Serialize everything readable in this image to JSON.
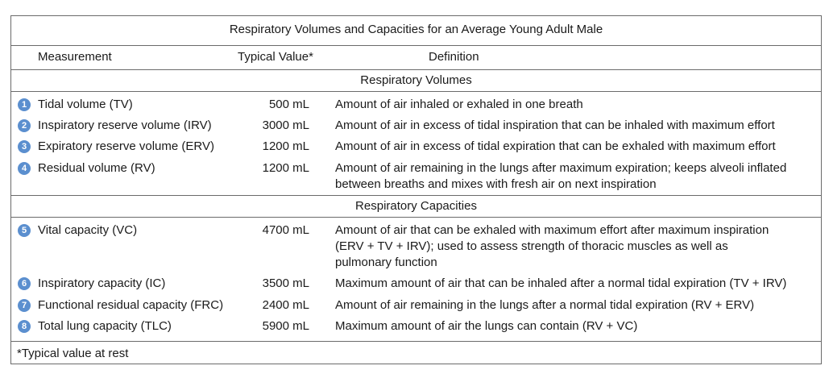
{
  "title": "Respiratory Volumes and Capacities for an Average Young Adult Male",
  "headers": {
    "measurement": "Measurement",
    "value": "Typical Value*",
    "definition": "Definition"
  },
  "sections": [
    {
      "label": "Respiratory Volumes",
      "rows": [
        {
          "num": "1",
          "measurement": "Tidal volume (TV)",
          "value": "500 mL",
          "definition": [
            "Amount of air inhaled or exhaled in one breath"
          ]
        },
        {
          "num": "2",
          "measurement": "Inspiratory reserve volume (IRV)",
          "value": "3000 mL",
          "definition": [
            "Amount of air in excess of tidal inspiration that can be inhaled with maximum effort"
          ]
        },
        {
          "num": "3",
          "measurement": "Expiratory reserve volume (ERV)",
          "value": "1200 mL",
          "definition": [
            "Amount of air in excess of tidal expiration that can be exhaled with maximum effort"
          ]
        },
        {
          "num": "4",
          "measurement": "Residual volume (RV)",
          "value": "1200 mL",
          "definition": [
            "Amount of air remaining in the lungs after maximum expiration; keeps alveoli inflated",
            "between breaths and mixes with fresh air on next inspiration"
          ]
        }
      ]
    },
    {
      "label": "Respiratory Capacities",
      "rows": [
        {
          "num": "5",
          "measurement": "Vital capacity (VC)",
          "value": "4700 mL",
          "definition": [
            "Amount of air that can be exhaled with maximum effort after maximum inspiration",
            "(ERV + TV + IRV); used to assess strength of thoracic muscles as well as",
            "pulmonary function"
          ]
        },
        {
          "num": "6",
          "measurement": "Inspiratory capacity (IC)",
          "value": "3500 mL",
          "definition": [
            "Maximum amount of air that can be inhaled after a normal tidal expiration (TV + IRV)"
          ]
        },
        {
          "num": "7",
          "measurement": "Functional residual capacity (FRC)",
          "value": "2400 mL",
          "definition": [
            "Amount of air remaining in the lungs after a normal tidal expiration (RV + ERV)"
          ]
        },
        {
          "num": "8",
          "measurement": "Total lung capacity (TLC)",
          "value": "5900 mL",
          "definition": [
            "Maximum amount of air the lungs can contain (RV + VC)"
          ]
        }
      ]
    }
  ],
  "footnote": "*Typical value at rest",
  "colors": {
    "badge": "#5b8fcf",
    "rule": "#6b6b6b",
    "text": "#1a1a1a"
  }
}
